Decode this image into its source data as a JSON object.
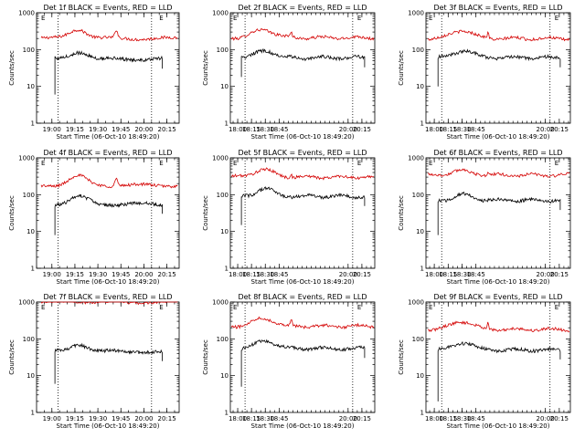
{
  "figure": {
    "x_axis_label": "Start Time (06-Oct-10 18:49:20)",
    "y_axis_label": "Counts/sec",
    "marker_label": "E"
  },
  "chart_data": [
    {
      "type": "line",
      "title": "Det 1f BLACK = Events, RED = LLD",
      "xlabel": "Start Time (06-Oct-10 18:49:20)",
      "ylabel": "Counts/sec",
      "yscale": "log",
      "ylim": [
        1,
        1000
      ],
      "xlim": [
        "18:50",
        "20:23"
      ],
      "xticks": [
        "19:00",
        "19:15",
        "19:30",
        "19:45",
        "20:00",
        "20:15"
      ],
      "ytick_labels": [
        "1",
        "10",
        "100",
        "1000"
      ],
      "vlines": [
        "19:04",
        "20:05"
      ],
      "markers": [
        {
          "label": "E",
          "x": "18:53"
        },
        {
          "label": "E",
          "x": "20:10"
        }
      ],
      "series": [
        {
          "name": "LLD",
          "color": "#d40000",
          "level": 200,
          "start": "18:53",
          "end": "20:22",
          "hump": {
            "at": "19:17",
            "amp": 0.26,
            "width": 8
          },
          "spike": {
            "at": "19:42",
            "amp": 0.22
          }
        },
        {
          "name": "Events",
          "color": "#000000",
          "level": 55,
          "start": "19:02",
          "end": "20:12",
          "dip_to": 6,
          "hump": {
            "at": "19:18",
            "amp": 0.2,
            "width": 8
          }
        }
      ]
    },
    {
      "type": "line",
      "title": "Det 2f BLACK = Events, RED = LLD",
      "xlabel": "Start Time (06-Oct-10 18:49:20)",
      "ylabel": "Counts/sec",
      "yscale": "log",
      "ylim": [
        1,
        1000
      ],
      "xlim": [
        "17:52",
        "20:29"
      ],
      "xticks": [
        "18:00",
        "18:15",
        "18:30",
        "18:45",
        "20:00",
        "20:15"
      ],
      "ytick_labels": [
        "1",
        "10",
        "100",
        "1000"
      ],
      "vlines": [
        "18:08",
        "20:05"
      ],
      "markers": [
        {
          "label": "E",
          "x": "17:55"
        },
        {
          "label": "E",
          "x": "20:10"
        }
      ],
      "series": [
        {
          "name": "LLD",
          "color": "#d40000",
          "level": 210,
          "start": "17:53",
          "end": "20:28",
          "hump": {
            "at": "18:28",
            "amp": 0.22,
            "width": 16
          },
          "spike": {
            "at": "18:58",
            "amp": 0.15
          }
        },
        {
          "name": "Events",
          "color": "#000000",
          "level": 60,
          "start": "18:04",
          "end": "20:18",
          "dip_to": 18,
          "hump": {
            "at": "18:30",
            "amp": 0.2,
            "width": 14
          }
        }
      ]
    },
    {
      "type": "line",
      "title": "Det 3f BLACK = Events, RED = LLD",
      "xlabel": "Start Time (06-Oct-10 18:49:20)",
      "ylabel": "Counts/sec",
      "yscale": "log",
      "ylim": [
        1,
        1000
      ],
      "xlim": [
        "17:51",
        "20:27"
      ],
      "xticks": [
        "18:00",
        "18:15",
        "18:30",
        "18:45",
        "20:00",
        "20:15"
      ],
      "ytick_labels": [
        "1",
        "10",
        "100",
        "1000"
      ],
      "vlines": [
        "18:08",
        "20:05"
      ],
      "markers": [
        {
          "label": "E",
          "x": "17:54"
        },
        {
          "label": "E",
          "x": "20:10"
        }
      ],
      "series": [
        {
          "name": "LLD",
          "color": "#d40000",
          "level": 200,
          "start": "17:53",
          "end": "20:26",
          "hump": {
            "at": "18:30",
            "amp": 0.22,
            "width": 16
          },
          "spike": {
            "at": "18:58",
            "amp": 0.15
          }
        },
        {
          "name": "Events",
          "color": "#000000",
          "level": 60,
          "start": "18:04",
          "end": "20:16",
          "dip_to": 10,
          "hump": {
            "at": "18:32",
            "amp": 0.2,
            "width": 14
          }
        }
      ]
    },
    {
      "type": "line",
      "title": "Det 4f BLACK = Events, RED = LLD",
      "xlabel": "Start Time (06-Oct-10 18:49:20)",
      "ylabel": "Counts/sec",
      "yscale": "log",
      "ylim": [
        1,
        1000
      ],
      "xlim": [
        "18:50",
        "20:23"
      ],
      "xticks": [
        "19:00",
        "19:15",
        "19:30",
        "19:45",
        "20:00",
        "20:15"
      ],
      "ytick_labels": [
        "1",
        "10",
        "100",
        "1000"
      ],
      "vlines": [
        "19:04",
        "20:05"
      ],
      "markers": [
        {
          "label": "E",
          "x": "18:53"
        },
        {
          "label": "E",
          "x": "20:10"
        }
      ],
      "series": [
        {
          "name": "LLD",
          "color": "#d40000",
          "level": 180,
          "start": "18:53",
          "end": "20:22",
          "hump": {
            "at": "19:17",
            "amp": 0.25,
            "width": 8
          },
          "spike": {
            "at": "19:42",
            "amp": 0.22
          }
        },
        {
          "name": "Events",
          "color": "#000000",
          "level": 55,
          "start": "19:02",
          "end": "20:12",
          "dip_to": 8,
          "hump": {
            "at": "19:18",
            "amp": 0.2,
            "width": 8
          }
        }
      ]
    },
    {
      "type": "line",
      "title": "Det 5f BLACK = Events, RED = LLD",
      "xlabel": "Start Time (06-Oct-10 18:49:20)",
      "ylabel": "Counts/sec",
      "yscale": "log",
      "ylim": [
        1,
        1000
      ],
      "xlim": [
        "17:52",
        "20:29"
      ],
      "xticks": [
        "18:00",
        "18:15",
        "18:30",
        "18:45",
        "20:00",
        "20:15"
      ],
      "ytick_labels": [
        "1",
        "10",
        "100",
        "1000"
      ],
      "vlines": [
        "18:08",
        "20:05"
      ],
      "markers": [
        {
          "label": "E",
          "x": "17:55"
        },
        {
          "label": "E",
          "x": "20:10"
        }
      ],
      "series": [
        {
          "name": "LLD",
          "color": "#d40000",
          "level": 300,
          "start": "17:53",
          "end": "20:28",
          "hump": {
            "at": "18:28",
            "amp": 0.2,
            "width": 16
          },
          "spike": {
            "at": "18:58",
            "amp": 0.1
          }
        },
        {
          "name": "Events",
          "color": "#000000",
          "level": 90,
          "start": "18:04",
          "end": "20:18",
          "dip_to": 15,
          "hump": {
            "at": "18:30",
            "amp": 0.2,
            "width": 14
          }
        }
      ]
    },
    {
      "type": "line",
      "title": "Det 6f BLACK = Events, RED = LLD",
      "xlabel": "Start Time (06-Oct-10 18:49:20)",
      "ylabel": "Counts/sec",
      "yscale": "log",
      "ylim": [
        1,
        1000
      ],
      "xlim": [
        "17:51",
        "20:27"
      ],
      "xticks": [
        "18:00",
        "18:15",
        "18:30",
        "18:45",
        "20:00",
        "20:15"
      ],
      "ytick_labels": [
        "1",
        "10",
        "100",
        "1000"
      ],
      "vlines": [
        "18:08",
        "20:05"
      ],
      "markers": [
        {
          "label": "E",
          "x": "17:54"
        },
        {
          "label": "E",
          "x": "20:10"
        }
      ],
      "series": [
        {
          "name": "LLD",
          "color": "#d40000",
          "level": 340,
          "start": "17:53",
          "end": "20:26",
          "hump": {
            "at": "18:30",
            "amp": 0.12,
            "width": 16
          },
          "spike": {
            "at": "18:58",
            "amp": 0.05
          }
        },
        {
          "name": "Events",
          "color": "#000000",
          "level": 70,
          "start": "18:04",
          "end": "20:16",
          "dip_to": 8,
          "hump": {
            "at": "18:32",
            "amp": 0.15,
            "width": 14
          }
        }
      ]
    },
    {
      "type": "line",
      "title": "Det 7f BLACK = Events, RED = LLD",
      "xlabel": "Start Time (06-Oct-10 18:49:20)",
      "ylabel": "Counts/sec",
      "yscale": "log",
      "ylim": [
        1,
        1000
      ],
      "xlim": [
        "18:50",
        "20:23"
      ],
      "xticks": [
        "19:00",
        "19:15",
        "19:30",
        "19:45",
        "20:00",
        "20:15"
      ],
      "ytick_labels": [
        "1",
        "10",
        "100",
        "1000"
      ],
      "vlines": [
        "19:04",
        "20:05"
      ],
      "markers": [
        {
          "label": "E",
          "x": "18:53"
        },
        {
          "label": "E",
          "x": "20:10"
        }
      ],
      "series": [
        {
          "name": "LLD",
          "color": "#d40000",
          "level": 1000,
          "start": "18:53",
          "end": "20:22",
          "hump": {
            "at": "19:17",
            "amp": 0.03,
            "width": 8
          },
          "spike": {
            "at": "19:42",
            "amp": 0.03
          }
        },
        {
          "name": "Events",
          "color": "#000000",
          "level": 45,
          "start": "19:02",
          "end": "20:12",
          "dip_to": 6,
          "hump": {
            "at": "19:18",
            "amp": 0.2,
            "width": 8
          }
        }
      ]
    },
    {
      "type": "line",
      "title": "Det 8f BLACK = Events, RED = LLD",
      "xlabel": "Start Time (06-Oct-10 18:49:20)",
      "ylabel": "Counts/sec",
      "yscale": "log",
      "ylim": [
        1,
        1000
      ],
      "xlim": [
        "17:52",
        "20:29"
      ],
      "xticks": [
        "18:00",
        "18:15",
        "18:30",
        "18:45",
        "20:00",
        "20:15"
      ],
      "ytick_labels": [
        "1",
        "10",
        "100",
        "1000"
      ],
      "vlines": [
        "18:08",
        "20:05"
      ],
      "markers": [
        {
          "label": "E",
          "x": "17:55"
        },
        {
          "label": "E",
          "x": "20:10"
        }
      ],
      "series": [
        {
          "name": "LLD",
          "color": "#d40000",
          "level": 220,
          "start": "17:53",
          "end": "20:28",
          "hump": {
            "at": "18:28",
            "amp": 0.22,
            "width": 16
          },
          "spike": {
            "at": "18:58",
            "amp": 0.15
          }
        },
        {
          "name": "Events",
          "color": "#000000",
          "level": 55,
          "start": "18:04",
          "end": "20:18",
          "dip_to": 5,
          "hump": {
            "at": "18:30",
            "amp": 0.2,
            "width": 14
          }
        }
      ]
    },
    {
      "type": "line",
      "title": "Det 9f BLACK = Events, RED = LLD",
      "xlabel": "Start Time (06-Oct-10 18:49:20)",
      "ylabel": "Counts/sec",
      "yscale": "log",
      "ylim": [
        1,
        1000
      ],
      "xlim": [
        "17:51",
        "20:27"
      ],
      "xticks": [
        "18:00",
        "18:15",
        "18:30",
        "18:45",
        "20:00",
        "20:15"
      ],
      "ytick_labels": [
        "1",
        "10",
        "100",
        "1000"
      ],
      "vlines": [
        "18:08",
        "20:05"
      ],
      "markers": [
        {
          "label": "E",
          "x": "17:54"
        },
        {
          "label": "E",
          "x": "20:10"
        }
      ],
      "series": [
        {
          "name": "LLD",
          "color": "#d40000",
          "level": 180,
          "start": "17:53",
          "end": "20:26",
          "hump": {
            "at": "18:30",
            "amp": 0.22,
            "width": 16
          },
          "spike": {
            "at": "18:58",
            "amp": 0.15
          }
        },
        {
          "name": "Events",
          "color": "#000000",
          "level": 50,
          "start": "18:04",
          "end": "20:16",
          "dip_to": 2,
          "hump": {
            "at": "18:32",
            "amp": 0.2,
            "width": 14
          }
        }
      ]
    }
  ]
}
